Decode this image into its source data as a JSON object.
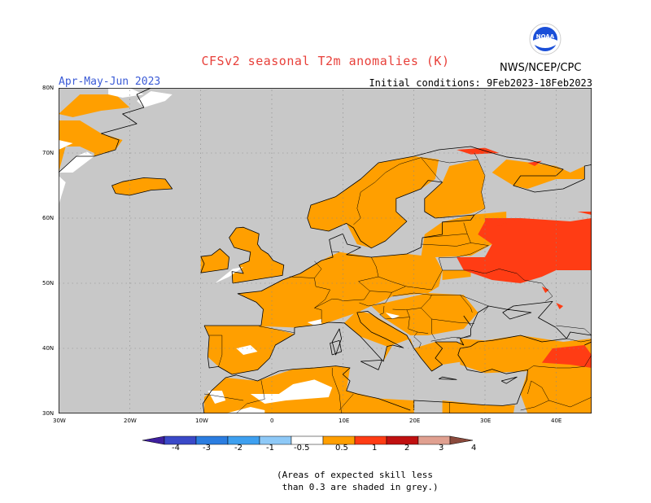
{
  "header": {
    "title": "CFSv2 seasonal T2m anomalies (K)",
    "season": "Apr-May-Jun 2023",
    "initial_conditions": "Initial conditions: 9Feb2023-18Feb2023",
    "organization": "NWS/NCEP/CPC",
    "logo_text": "NOAA"
  },
  "map": {
    "lat_ticks": [
      "80N",
      "70N",
      "60N",
      "50N",
      "40N",
      "30N"
    ],
    "lon_ticks": [
      "30W",
      "20W",
      "10W",
      "0",
      "10E",
      "20E",
      "30E",
      "40E"
    ],
    "lon_range": [
      -30,
      45
    ],
    "lat_range": [
      30,
      80
    ]
  },
  "colorbar": {
    "labels": [
      "-4",
      "-3",
      "-2",
      "-1",
      "-0.5",
      "0.5",
      "1",
      "2",
      "3",
      "4"
    ],
    "colors": [
      "#3e1f9e",
      "#3a49c8",
      "#2b7de0",
      "#3ea0f0",
      "#8ec9f7",
      "#ffffff",
      "#ff9f00",
      "#ff3c14",
      "#c01010",
      "#e0a090",
      "#8b4a3c"
    ]
  },
  "colors": {
    "grey": "#c8c8c8",
    "orange": "#ff9f00",
    "red": "#ff3c14",
    "white": "#ffffff"
  },
  "footnote": {
    "line1": "(Areas of expected skill less",
    "line2": " than 0.3 are shaded in grey.)"
  }
}
